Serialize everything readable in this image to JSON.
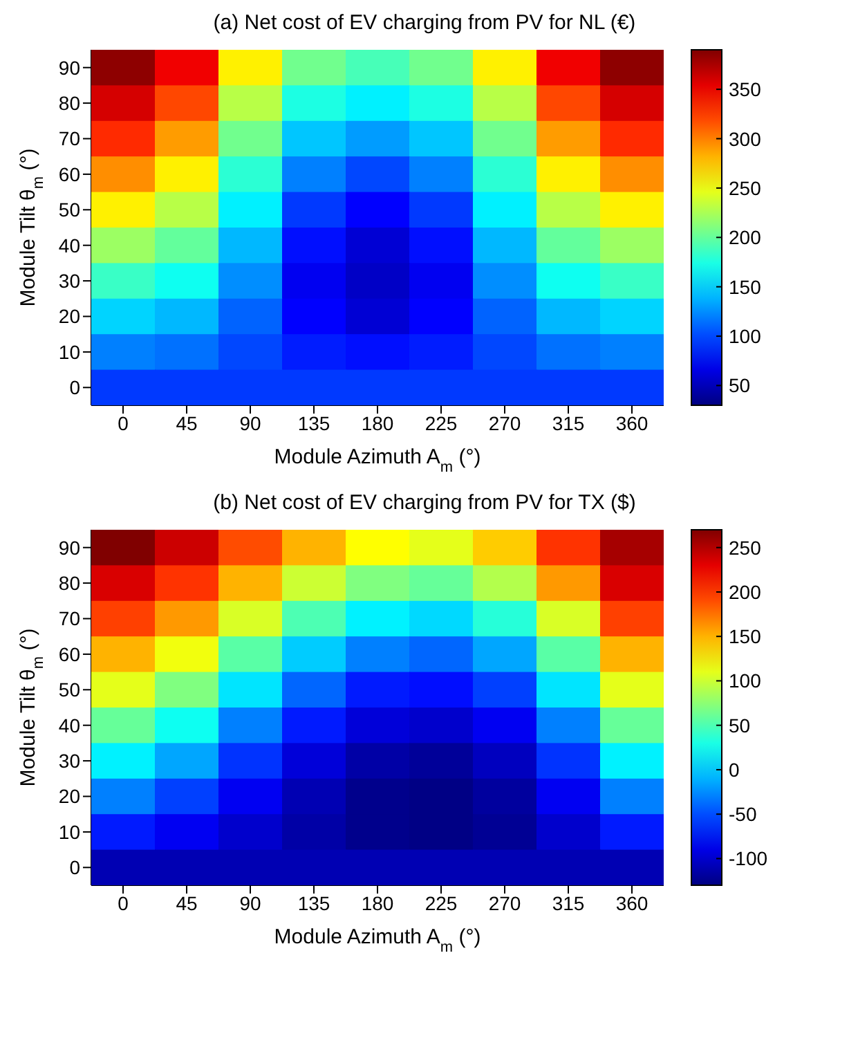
{
  "chart_data": [
    {
      "type": "heatmap",
      "title": "(a) Net cost of EV charging from PV for NL (€)",
      "xlabel": "Module Azimuth A$_{m}$ (°)",
      "ylabel": "Module Tilt θ$_{m}$ (°)",
      "categories": [
        "0",
        "45",
        "90",
        "135",
        "180",
        "225",
        "270",
        "315",
        "360"
      ],
      "y_categories": [
        "90",
        "80",
        "70",
        "60",
        "50",
        "40",
        "30",
        "20",
        "10",
        "0"
      ],
      "cells": [
        [
          385,
          350,
          260,
          205,
          190,
          205,
          260,
          350,
          385
        ],
        [
          360,
          320,
          230,
          175,
          160,
          175,
          230,
          320,
          360
        ],
        [
          330,
          290,
          205,
          145,
          130,
          145,
          205,
          290,
          330
        ],
        [
          295,
          260,
          180,
          120,
          100,
          120,
          180,
          260,
          295
        ],
        [
          260,
          230,
          160,
          95,
          75,
          95,
          160,
          230,
          260
        ],
        [
          220,
          200,
          140,
          80,
          60,
          80,
          140,
          200,
          220
        ],
        [
          185,
          170,
          125,
          70,
          55,
          70,
          125,
          170,
          185
        ],
        [
          150,
          140,
          110,
          75,
          60,
          75,
          110,
          140,
          150
        ],
        [
          120,
          115,
          100,
          85,
          80,
          85,
          100,
          115,
          120
        ],
        [
          95,
          95,
          95,
          95,
          95,
          95,
          95,
          95,
          95
        ]
      ],
      "clim": [
        30,
        390
      ],
      "cticks": [
        50,
        100,
        150,
        200,
        250,
        300,
        350
      ]
    },
    {
      "type": "heatmap",
      "title": "(b) Net cost of EV charging from PV for TX ($)",
      "xlabel": "Module Azimuth A$_{m}$ (°)",
      "ylabel": "Module Tilt θ$_{m}$ (°)",
      "categories": [
        "0",
        "45",
        "90",
        "135",
        "180",
        "225",
        "270",
        "315",
        "360"
      ],
      "y_categories": [
        "90",
        "80",
        "70",
        "60",
        "50",
        "40",
        "30",
        "20",
        "10",
        "0"
      ],
      "cells": [
        [
          270,
          240,
          190,
          150,
          120,
          110,
          140,
          200,
          255
        ],
        [
          235,
          200,
          150,
          100,
          70,
          60,
          90,
          160,
          235
        ],
        [
          195,
          160,
          105,
          50,
          15,
          5,
          35,
          105,
          195
        ],
        [
          150,
          115,
          55,
          0,
          -30,
          -40,
          -15,
          55,
          150
        ],
        [
          110,
          70,
          10,
          -40,
          -70,
          -75,
          -55,
          10,
          110
        ],
        [
          60,
          25,
          -30,
          -70,
          -95,
          -100,
          -85,
          -30,
          60
        ],
        [
          15,
          -15,
          -60,
          -95,
          -115,
          -120,
          -105,
          -60,
          15
        ],
        [
          -30,
          -55,
          -85,
          -110,
          -125,
          -128,
          -118,
          -85,
          -30
        ],
        [
          -70,
          -85,
          -100,
          -115,
          -125,
          -128,
          -122,
          -100,
          -70
        ],
        [
          -110,
          -110,
          -110,
          -110,
          -110,
          -110,
          -110,
          -110,
          -110
        ]
      ],
      "clim": [
        -130,
        270
      ],
      "cticks": [
        -100,
        -50,
        0,
        50,
        100,
        150,
        200,
        250
      ]
    }
  ]
}
